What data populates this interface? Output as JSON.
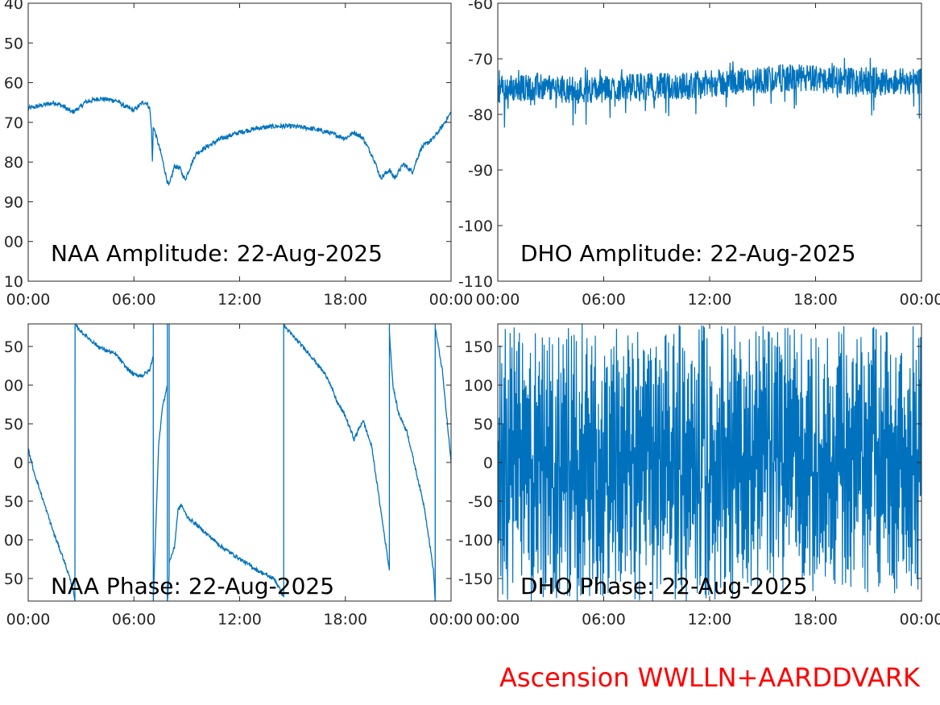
{
  "footer": "Ascension WWLLN+AARDDVARK",
  "colors": {
    "line": "#0072bd",
    "footer": "#ff0000",
    "axis": "#262626"
  },
  "chart_data": [
    {
      "type": "line",
      "title": "NAA Amplitude: 22-Aug-2025",
      "xlabel": "",
      "ylabel": "",
      "x_ticks": [
        "00:00",
        "06:00",
        "12:00",
        "18:00",
        "00:00"
      ],
      "y_ticks": [
        "40",
        "50",
        "60",
        "70",
        "80",
        "90",
        "00",
        "10"
      ],
      "ylim": [
        -110,
        -40
      ],
      "grid": false,
      "series": [
        {
          "x": [
            0,
            0.5,
            1,
            1.5,
            2,
            2.5,
            3,
            3.2,
            4,
            5,
            5.5,
            6,
            6.5,
            6.7,
            6.9,
            7,
            7.05,
            7.1,
            7.3,
            7.6,
            7.9,
            8,
            8.3,
            8.6,
            8.9,
            9.5,
            10,
            11,
            12,
            13,
            14,
            15,
            16,
            17,
            18,
            18.5,
            19,
            19.6,
            20,
            20.5,
            20.8,
            21.3,
            21.8,
            22.3,
            23,
            23.5,
            24
          ],
          "y": [
            -66.5,
            -66,
            -65.5,
            -65,
            -66,
            -67.5,
            -66,
            -65,
            -64,
            -64.5,
            -66,
            -67,
            -65,
            -65,
            -66.5,
            -72,
            -80,
            -71,
            -74,
            -79,
            -85,
            -86,
            -81,
            -81.5,
            -84.5,
            -78,
            -76.5,
            -74,
            -72.5,
            -71.5,
            -71,
            -71,
            -71.5,
            -72.5,
            -74,
            -72.5,
            -74,
            -79,
            -84,
            -82,
            -84,
            -80.5,
            -82.5,
            -76.5,
            -74,
            -71,
            -67.5
          ]
        }
      ]
    },
    {
      "type": "line",
      "title": "DHO Amplitude: 22-Aug-2025",
      "xlabel": "",
      "ylabel": "",
      "x_ticks": [
        "00:00",
        "06:00",
        "12:00",
        "18:00",
        "00:00"
      ],
      "y_ticks": [
        "-60",
        "-70",
        "-80",
        "-90",
        "-100",
        "-110"
      ],
      "ylim": [
        -110,
        -60
      ],
      "grid": false,
      "series": [
        {
          "x": [
            0,
            2,
            4,
            6,
            8,
            10,
            12,
            14,
            16,
            18,
            20,
            22,
            24
          ],
          "y": [
            -75.5,
            -75,
            -75.5,
            -75.5,
            -75,
            -75,
            -74.5,
            -74,
            -73.5,
            -73.5,
            -74,
            -74,
            -74
          ]
        }
      ]
    },
    {
      "type": "line",
      "title": "NAA Phase: 22-Aug-2025",
      "xlabel": "",
      "ylabel": "",
      "x_ticks": [
        "00:00",
        "06:00",
        "12:00",
        "18:00",
        "00:00"
      ],
      "y_ticks": [
        "50",
        "00",
        "50",
        "0",
        "50",
        "00",
        "50"
      ],
      "ylim": [
        -180,
        180
      ],
      "grid": false,
      "series": [
        {
          "x": [
            0,
            0.3,
            1,
            1.5,
            2,
            2.5,
            2.65,
            2.66,
            2.7,
            3,
            3.5,
            4,
            5,
            5.5,
            6,
            6.5,
            6.9,
            7.1,
            7.101,
            7.1,
            7.4,
            7.6,
            7.8,
            7.9,
            7.901,
            7.9,
            8.0,
            8.001,
            8.0,
            8.3,
            8.5,
            8.7,
            9,
            10,
            11,
            12,
            13,
            14,
            14.5,
            14.501,
            14.5,
            15,
            16,
            17,
            17.5,
            18,
            18.5,
            19,
            19.5,
            20,
            20.5,
            20.501,
            20.5,
            20.7,
            21,
            21.5,
            22,
            22.5,
            23,
            23.1,
            23.101,
            23.1,
            23.5,
            24
          ],
          "y": [
            17,
            -10,
            -60,
            -95,
            -125,
            -160,
            -180,
            180,
            178,
            170,
            160,
            150,
            140,
            125,
            114,
            113,
            120,
            140,
            180,
            -180,
            20,
            70,
            90,
            100,
            180,
            -180,
            -145,
            180,
            -130,
            -110,
            -62,
            -55,
            -70,
            -90,
            -110,
            -125,
            -140,
            -152,
            -175,
            180,
            178,
            165,
            140,
            110,
            80,
            60,
            30,
            55,
            20,
            -60,
            -140,
            180,
            170,
            100,
            65,
            40,
            -10,
            -60,
            -140,
            -180,
            180,
            175,
            120,
            0
          ]
        }
      ]
    },
    {
      "type": "line",
      "title": "DHO Phase: 22-Aug-2025",
      "xlabel": "",
      "ylabel": "",
      "x_ticks": [
        "00:00",
        "06:00",
        "12:00",
        "18:00",
        "00:00"
      ],
      "y_ticks": [
        "150",
        "100",
        "50",
        "0",
        "-50",
        "-100",
        "-150"
      ],
      "ylim": [
        -180,
        180
      ],
      "grid": false,
      "series": [
        {
          "x": [
            0,
            24
          ],
          "y": [
            -180,
            180
          ]
        }
      ]
    }
  ]
}
